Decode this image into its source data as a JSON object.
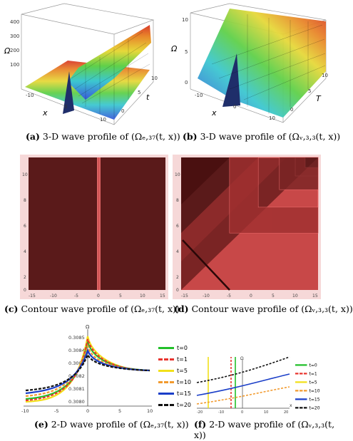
{
  "captions": {
    "a": {
      "tag": "(a)",
      "text": "3-D wave profile of",
      "math": "(Ωₑ,₃₇(t, x))"
    },
    "b": {
      "tag": "(b)",
      "text": "3-D wave profile of",
      "math": "(Ωᵥ,₃,₃(t, x))"
    },
    "c": {
      "tag": "(c)",
      "text": "Contour wave profile of",
      "math": "(Ωₑ,₃₇(t, x))"
    },
    "d": {
      "tag": "(d)",
      "text": "Contour wave profile of",
      "math": "(Ωᵥ,₃,₃(t, x))"
    },
    "e": {
      "tag": "(e)",
      "text": "2-D wave profile of",
      "math": "(Ωₑ,₃₇(t, x))"
    },
    "f": {
      "tag": "(f)",
      "text": "2-D wave profile of",
      "math": "(Ωᵥ,₃,₃(t, x))"
    }
  },
  "panel_a": {
    "axis_labels": {
      "x": "x",
      "t": "t",
      "omega": "Ω"
    },
    "z_ticks": [
      "400",
      "300",
      "200",
      "100"
    ],
    "x_ticks": [
      "-10",
      "0",
      "10"
    ],
    "t_ticks": [
      "0",
      "5",
      "10"
    ]
  },
  "panel_b": {
    "axis_labels": {
      "x": "x",
      "t": "T",
      "omega": "Ω"
    },
    "z_ticks": [
      "10",
      "5",
      "0"
    ],
    "x_ticks": [
      "-10",
      "0",
      "10"
    ],
    "t_ticks": [
      "0",
      "5",
      "10"
    ]
  },
  "panel_c": {
    "x_ticks": [
      "-15",
      "-10",
      "-5",
      "0",
      "5",
      "10",
      "15"
    ],
    "y_ticks": [
      "10",
      "8",
      "6",
      "4",
      "2",
      "0"
    ],
    "colors": {
      "bg": "#5a1a1a",
      "frame": "#f6d8d8",
      "line": "#e86060"
    }
  },
  "panel_d": {
    "x_ticks": [
      "-15",
      "-10",
      "-5",
      "0",
      "5",
      "10",
      "15"
    ],
    "y_ticks": [
      "10",
      "8",
      "6",
      "4",
      "2",
      "0"
    ],
    "colors": {
      "bg": "#c84848",
      "dark": "#4a1010",
      "mid": "#a03030",
      "frame": "#f6d8d8"
    }
  },
  "panel_e": {
    "y_label": "Ω",
    "y_ticks": [
      "0.3085",
      "0.3084",
      "0.3083",
      "0.3082",
      "0.3081",
      "0.3080"
    ],
    "x_ticks": [
      "-10",
      "-5",
      "0",
      "5",
      "10"
    ],
    "legend": [
      {
        "label": "t=0",
        "color": "#22c02a",
        "dash": false
      },
      {
        "label": "t=1",
        "color": "#e8342e",
        "dash": true
      },
      {
        "label": "t=5",
        "color": "#f2e01a",
        "dash": false
      },
      {
        "label": "t=10",
        "color": "#f29a2e",
        "dash": true
      },
      {
        "label": "t=15",
        "color": "#1a3ec8",
        "dash": false
      },
      {
        "label": "t=20",
        "color": "#111111",
        "dash": true
      }
    ]
  },
  "panel_f": {
    "y_label": "Ω",
    "x_label": "x",
    "x_ticks": [
      "-20",
      "-10",
      "0",
      "10",
      "20"
    ],
    "legend": [
      {
        "label": "t=0",
        "color": "#22c02a",
        "dash": false
      },
      {
        "label": "t=1",
        "color": "#e8342e",
        "dash": true
      },
      {
        "label": "t=5",
        "color": "#f2e01a",
        "dash": false
      },
      {
        "label": "t=10",
        "color": "#f29a2e",
        "dash": true
      },
      {
        "label": "t=15",
        "color": "#1a3ec8",
        "dash": false
      },
      {
        "label": "t=20",
        "color": "#111111",
        "dash": true
      }
    ]
  }
}
